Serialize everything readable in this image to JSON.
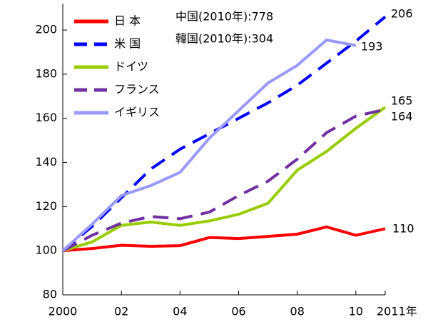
{
  "chart_data": {
    "type": "line",
    "x": [
      2000,
      2001,
      2002,
      2003,
      2004,
      2005,
      2006,
      2007,
      2008,
      2009,
      2010,
      2011
    ],
    "series": [
      {
        "name": "日 本",
        "color": "#ff0000",
        "dash": false,
        "values": [
          100,
          101,
          102.5,
          102,
          102.3,
          106,
          105.5,
          106.5,
          107.5,
          110.8,
          107,
          110
        ]
      },
      {
        "name": "米 国",
        "color": "#0000ff",
        "dash": true,
        "values": [
          100,
          111,
          124,
          137,
          146,
          153,
          160,
          167,
          175,
          185,
          195,
          206
        ]
      },
      {
        "name": "ドイツ",
        "color": "#99cc00",
        "dash": false,
        "values": [
          100,
          104,
          111.5,
          113,
          111.5,
          113.5,
          116.5,
          121.5,
          136.5,
          145,
          155.5,
          165
        ]
      },
      {
        "name": "フランス",
        "color": "#7030a0",
        "dash": true,
        "values": [
          100,
          107,
          112.5,
          115.5,
          114.5,
          117.5,
          125,
          131.5,
          141.5,
          153.5,
          161,
          164
        ]
      },
      {
        "name": "イギリス",
        "color": "#9999ff",
        "dash": false,
        "values": [
          100,
          112,
          125,
          129.5,
          135.5,
          151,
          163.5,
          176,
          184,
          195.5,
          193,
          null
        ]
      }
    ],
    "annotations": [
      "中国(2010年):778",
      "韓国(2010年):304",
      "206",
      "193",
      "165",
      "164",
      "110"
    ],
    "xlim": [
      2000,
      2011
    ],
    "xticks": [
      {
        "value": 2000,
        "label": "2000"
      },
      {
        "value": 2002,
        "label": "02"
      },
      {
        "value": 2004,
        "label": "04"
      },
      {
        "value": 2006,
        "label": "06"
      },
      {
        "value": 2008,
        "label": "08"
      },
      {
        "value": 2010,
        "label": "10"
      },
      {
        "value": 2011,
        "label": "2011年"
      }
    ],
    "ylim": [
      80,
      212
    ],
    "yticks": [
      80,
      100,
      120,
      140,
      160,
      180,
      200
    ],
    "grid": false
  }
}
